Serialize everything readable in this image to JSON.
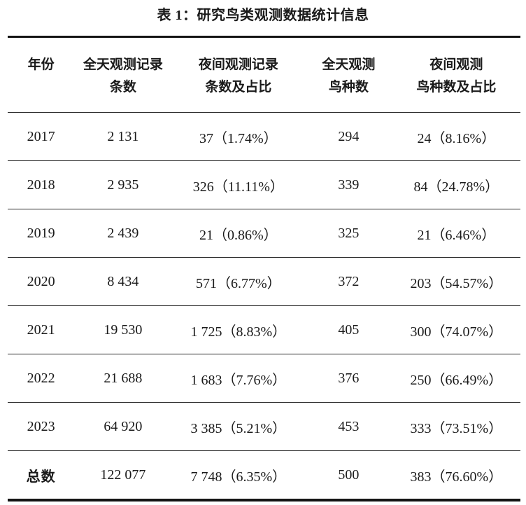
{
  "title": "表 1：研究鸟类观测数据统计信息",
  "table": {
    "columns": [
      {
        "line1": "年份",
        "line2": ""
      },
      {
        "line1": "全天观测记录",
        "line2": "条数"
      },
      {
        "line1": "夜间观测记录",
        "line2": "条数及占比"
      },
      {
        "line1": "全天观测",
        "line2": "鸟种数"
      },
      {
        "line1": "夜间观测",
        "line2": "鸟种数及占比"
      }
    ],
    "rows": [
      {
        "cells": [
          "2017",
          "2 131",
          "37（1.74%）",
          "294",
          "24（8.16%）"
        ]
      },
      {
        "cells": [
          "2018",
          "2 935",
          "326（11.11%）",
          "339",
          "84（24.78%）"
        ]
      },
      {
        "cells": [
          "2019",
          "2 439",
          "21（0.86%）",
          "325",
          "21（6.46%）"
        ]
      },
      {
        "cells": [
          "2020",
          "8 434",
          "571（6.77%）",
          "372",
          "203（54.57%）"
        ]
      },
      {
        "cells": [
          "2021",
          "19 530",
          "1 725（8.83%）",
          "405",
          "300（74.07%）"
        ]
      },
      {
        "cells": [
          "2022",
          "21 688",
          "1 683（7.76%）",
          "376",
          "250（66.49%）"
        ]
      },
      {
        "cells": [
          "2023",
          "64 920",
          "3 385（5.21%）",
          "453",
          "333（73.51%）"
        ]
      },
      {
        "cells": [
          "总数",
          "122 077",
          "7 748（6.35%）",
          "500",
          "383（76.60%）"
        ]
      }
    ]
  }
}
